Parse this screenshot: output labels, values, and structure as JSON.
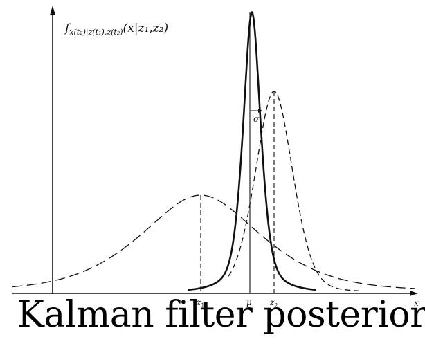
{
  "function_label": {
    "f": "f",
    "subscript": "x(t₂)|z(t₁),z(t₂)",
    "args": "(x|z₁,z₂)"
  },
  "axis": {
    "x_label": "x"
  },
  "ticks": [
    {
      "main": "z",
      "sub": "1"
    },
    {
      "main": "μ",
      "sub": ""
    },
    {
      "main": "z",
      "sub": "2"
    }
  ],
  "sigma_label": "σ",
  "caption": "Kalman filter posterior",
  "curves": [
    {
      "name": "prior-z1",
      "style": "long-dash",
      "mean": 0.0,
      "sd": 1.0
    },
    {
      "name": "measurement-z2",
      "style": "short-dash",
      "mean": 1.0,
      "sd": 0.2
    },
    {
      "name": "posterior",
      "style": "solid",
      "mean": 0.75,
      "sd": 0.1
    }
  ],
  "colors": {
    "ink": "#111111",
    "background": "#ffffff"
  }
}
